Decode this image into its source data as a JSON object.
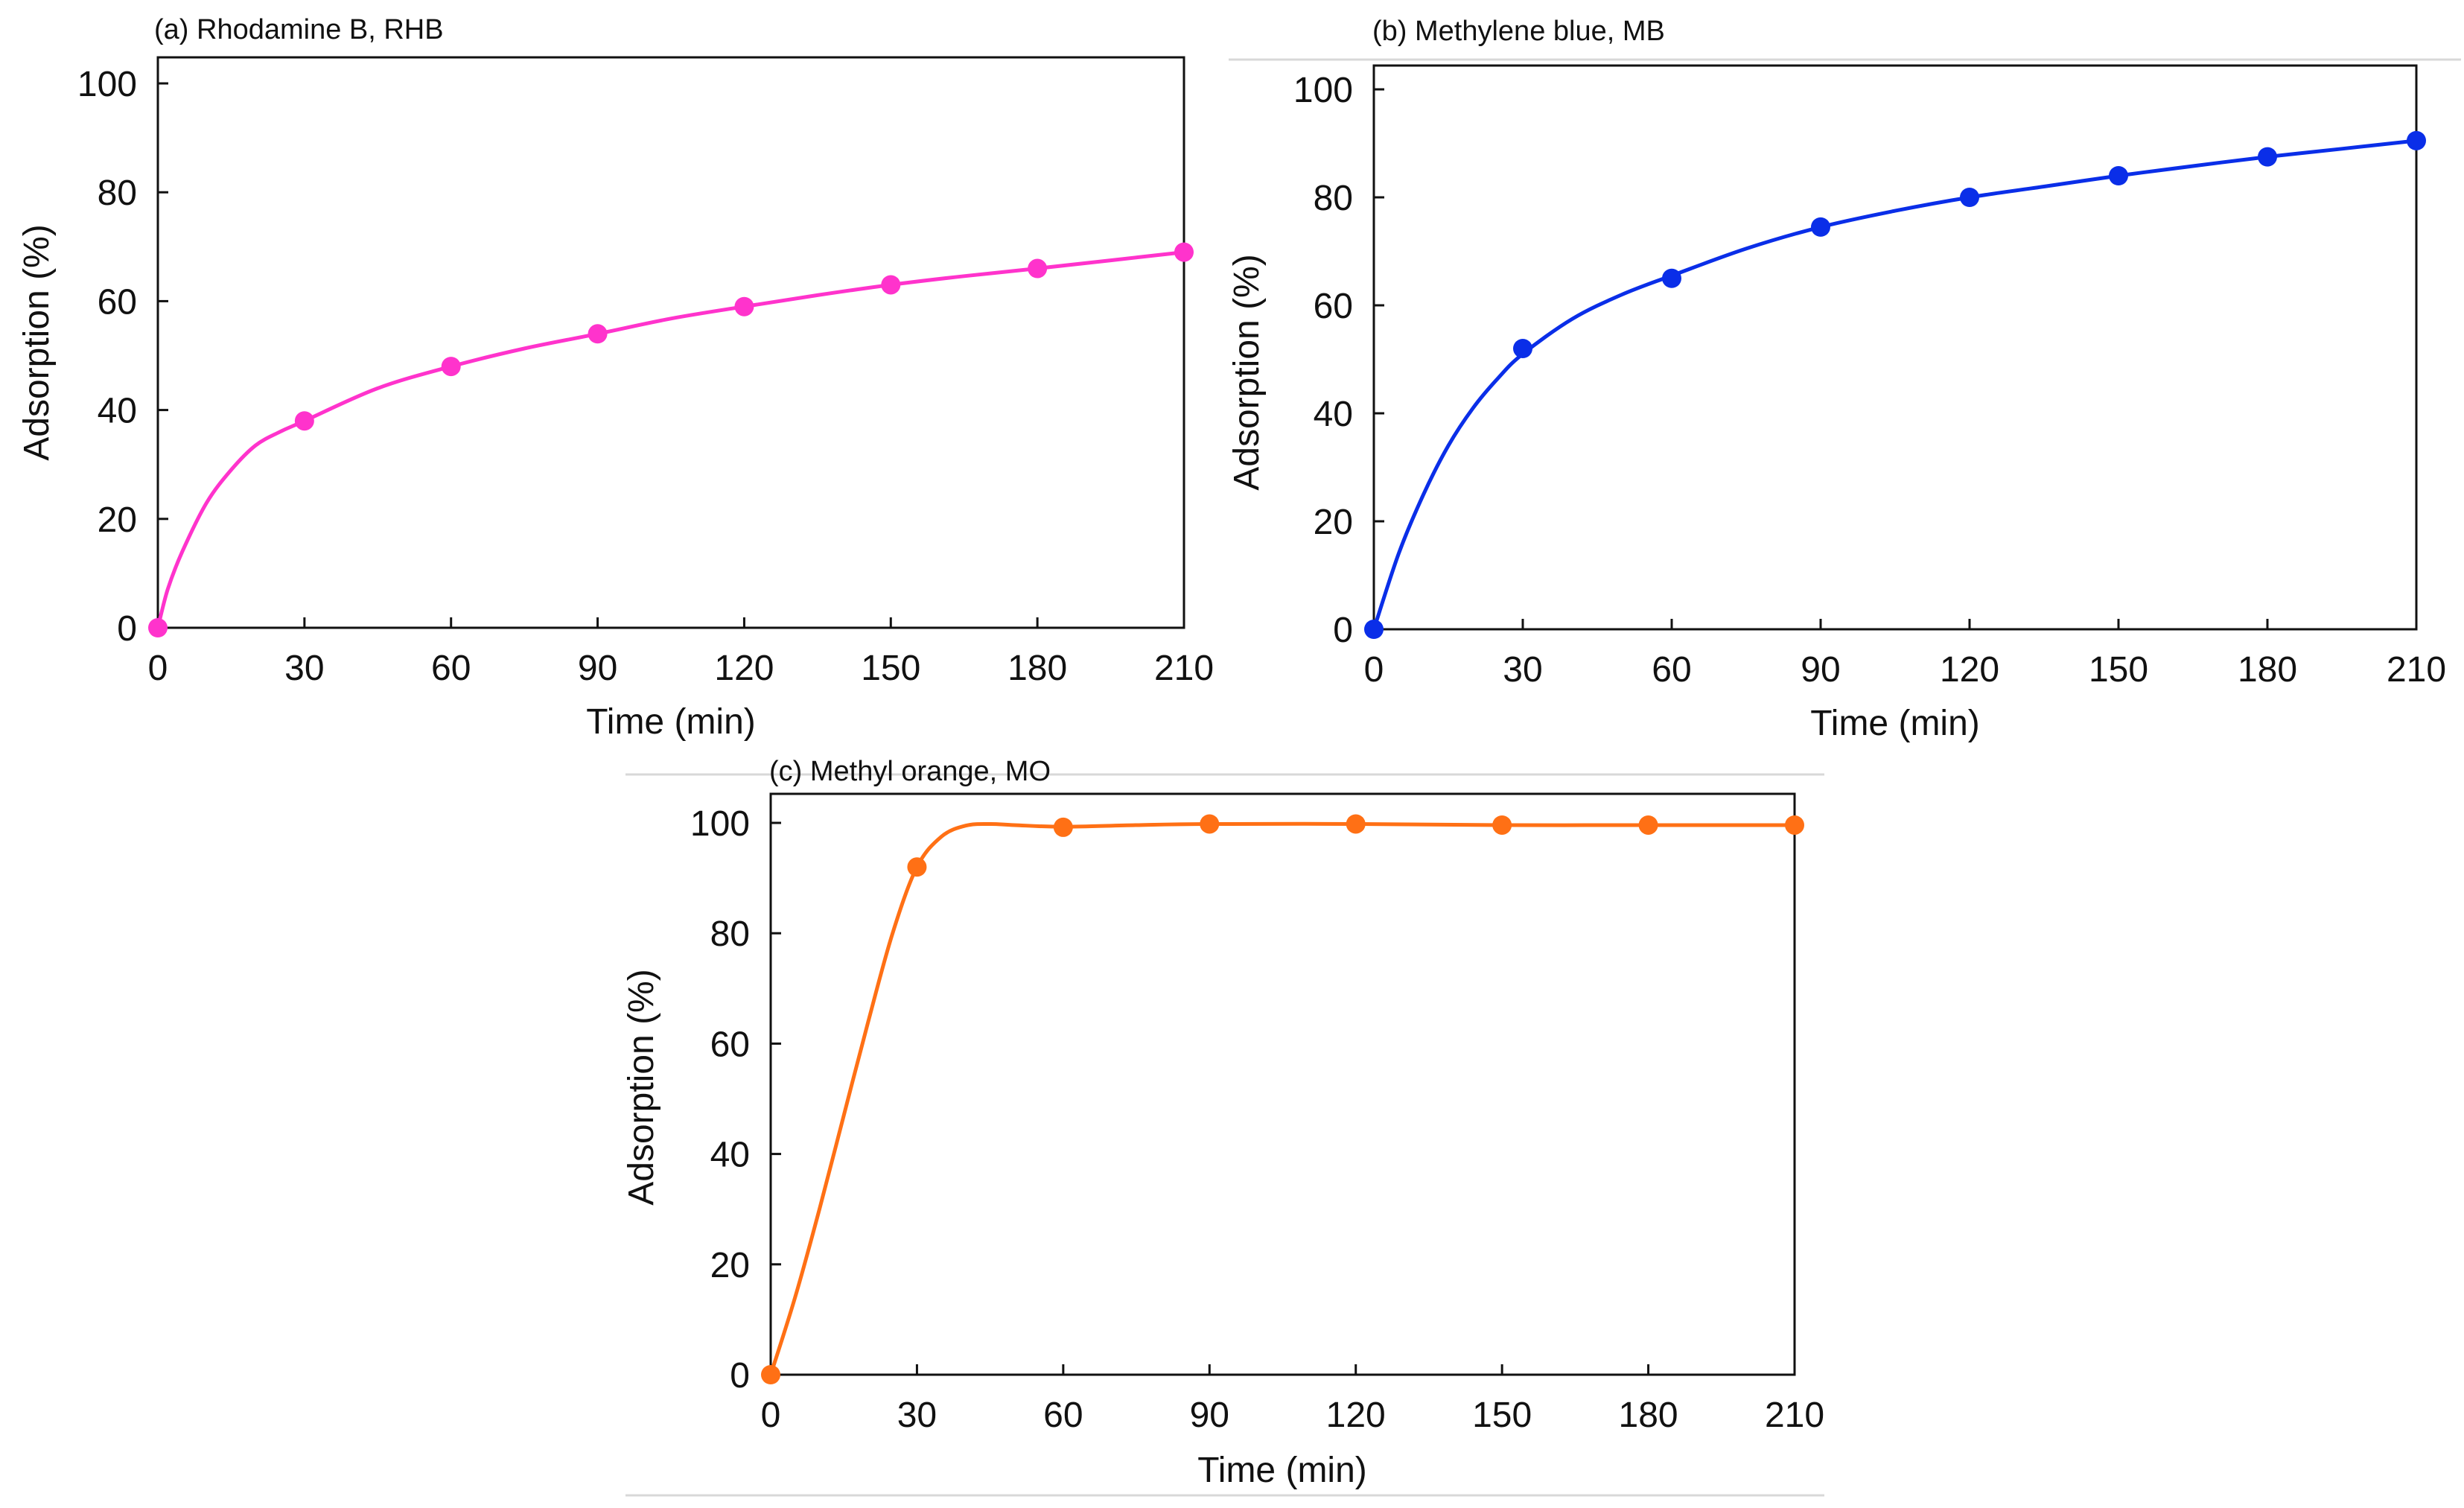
{
  "chart_data": [
    {
      "id": "a",
      "type": "scatter",
      "title": "(a) Rhodamine B, RHB",
      "xlabel": "Time (min)",
      "ylabel": "Adsorption (%)",
      "x": [
        0,
        30,
        60,
        90,
        120,
        150,
        180,
        210
      ],
      "y": [
        0,
        38,
        48,
        54,
        59,
        63,
        66,
        69
      ],
      "fit_curve": {
        "x": [
          0,
          2,
          5,
          10,
          15,
          20,
          25,
          30,
          45,
          60,
          75,
          90,
          105,
          120,
          135,
          150,
          165,
          180,
          195,
          210
        ],
        "y": [
          0,
          7,
          14,
          23,
          29,
          33.5,
          36,
          38,
          44,
          48,
          51.3,
          54,
          56.8,
          59,
          61.1,
          63,
          64.6,
          66,
          67.5,
          69
        ]
      },
      "xlim": [
        0,
        210
      ],
      "ylim": [
        0,
        100
      ],
      "xticks": [
        "0",
        "30",
        "60",
        "90",
        "120",
        "150",
        "180",
        "210"
      ],
      "yticks": [
        "0",
        "20",
        "40",
        "60",
        "80",
        "100"
      ],
      "color": "#ff33cc",
      "grid": false
    },
    {
      "id": "b",
      "type": "scatter",
      "title": "(b) Methylene blue, MB",
      "xlabel": "Time (min)",
      "ylabel": "Adsorption (%)",
      "x": [
        0,
        30,
        60,
        90,
        120,
        150,
        180,
        210
      ],
      "y": [
        0,
        52,
        65,
        74.5,
        80,
        84,
        87.5,
        90.5
      ],
      "fit_curve": {
        "x": [
          0,
          5,
          10,
          15,
          20,
          25,
          30,
          40,
          50,
          60,
          75,
          90,
          105,
          120,
          135,
          150,
          165,
          180,
          195,
          210
        ],
        "y": [
          0,
          14,
          25,
          34,
          41,
          46.5,
          51,
          57.5,
          62,
          65.5,
          70.5,
          74.5,
          77.5,
          80,
          82,
          84,
          85.8,
          87.5,
          89,
          90.5
        ]
      },
      "xlim": [
        0,
        210
      ],
      "ylim": [
        0,
        100
      ],
      "xticks": [
        "0",
        "30",
        "60",
        "90",
        "120",
        "150",
        "180",
        "210"
      ],
      "yticks": [
        "0",
        "20",
        "40",
        "60",
        "80",
        "100"
      ],
      "color": "#0a2ee8",
      "grid": false
    },
    {
      "id": "c",
      "type": "scatter",
      "title": "(c) Methyl orange, MO",
      "xlabel": "Time (min)",
      "ylabel": "Adsorption (%)",
      "x": [
        0,
        30,
        60,
        90,
        120,
        150,
        180,
        210
      ],
      "y": [
        0,
        92,
        99.2,
        99.8,
        99.8,
        99.6,
        99.6,
        99.6
      ],
      "fit_curve": {
        "x": [
          0,
          5,
          10,
          15,
          20,
          25,
          30,
          35,
          40,
          45,
          50,
          60,
          75,
          90,
          120,
          150,
          180,
          210
        ],
        "y": [
          0,
          14,
          30,
          47,
          64,
          80,
          92,
          97.5,
          99.5,
          99.8,
          99.6,
          99.3,
          99.6,
          99.8,
          99.8,
          99.6,
          99.6,
          99.6
        ]
      },
      "xlim": [
        0,
        210
      ],
      "ylim": [
        0,
        100
      ],
      "xticks": [
        "0",
        "30",
        "60",
        "90",
        "120",
        "150",
        "180",
        "210"
      ],
      "yticks": [
        "0",
        "20",
        "40",
        "60",
        "80",
        "100"
      ],
      "color": "#ff7015",
      "grid": false
    }
  ]
}
